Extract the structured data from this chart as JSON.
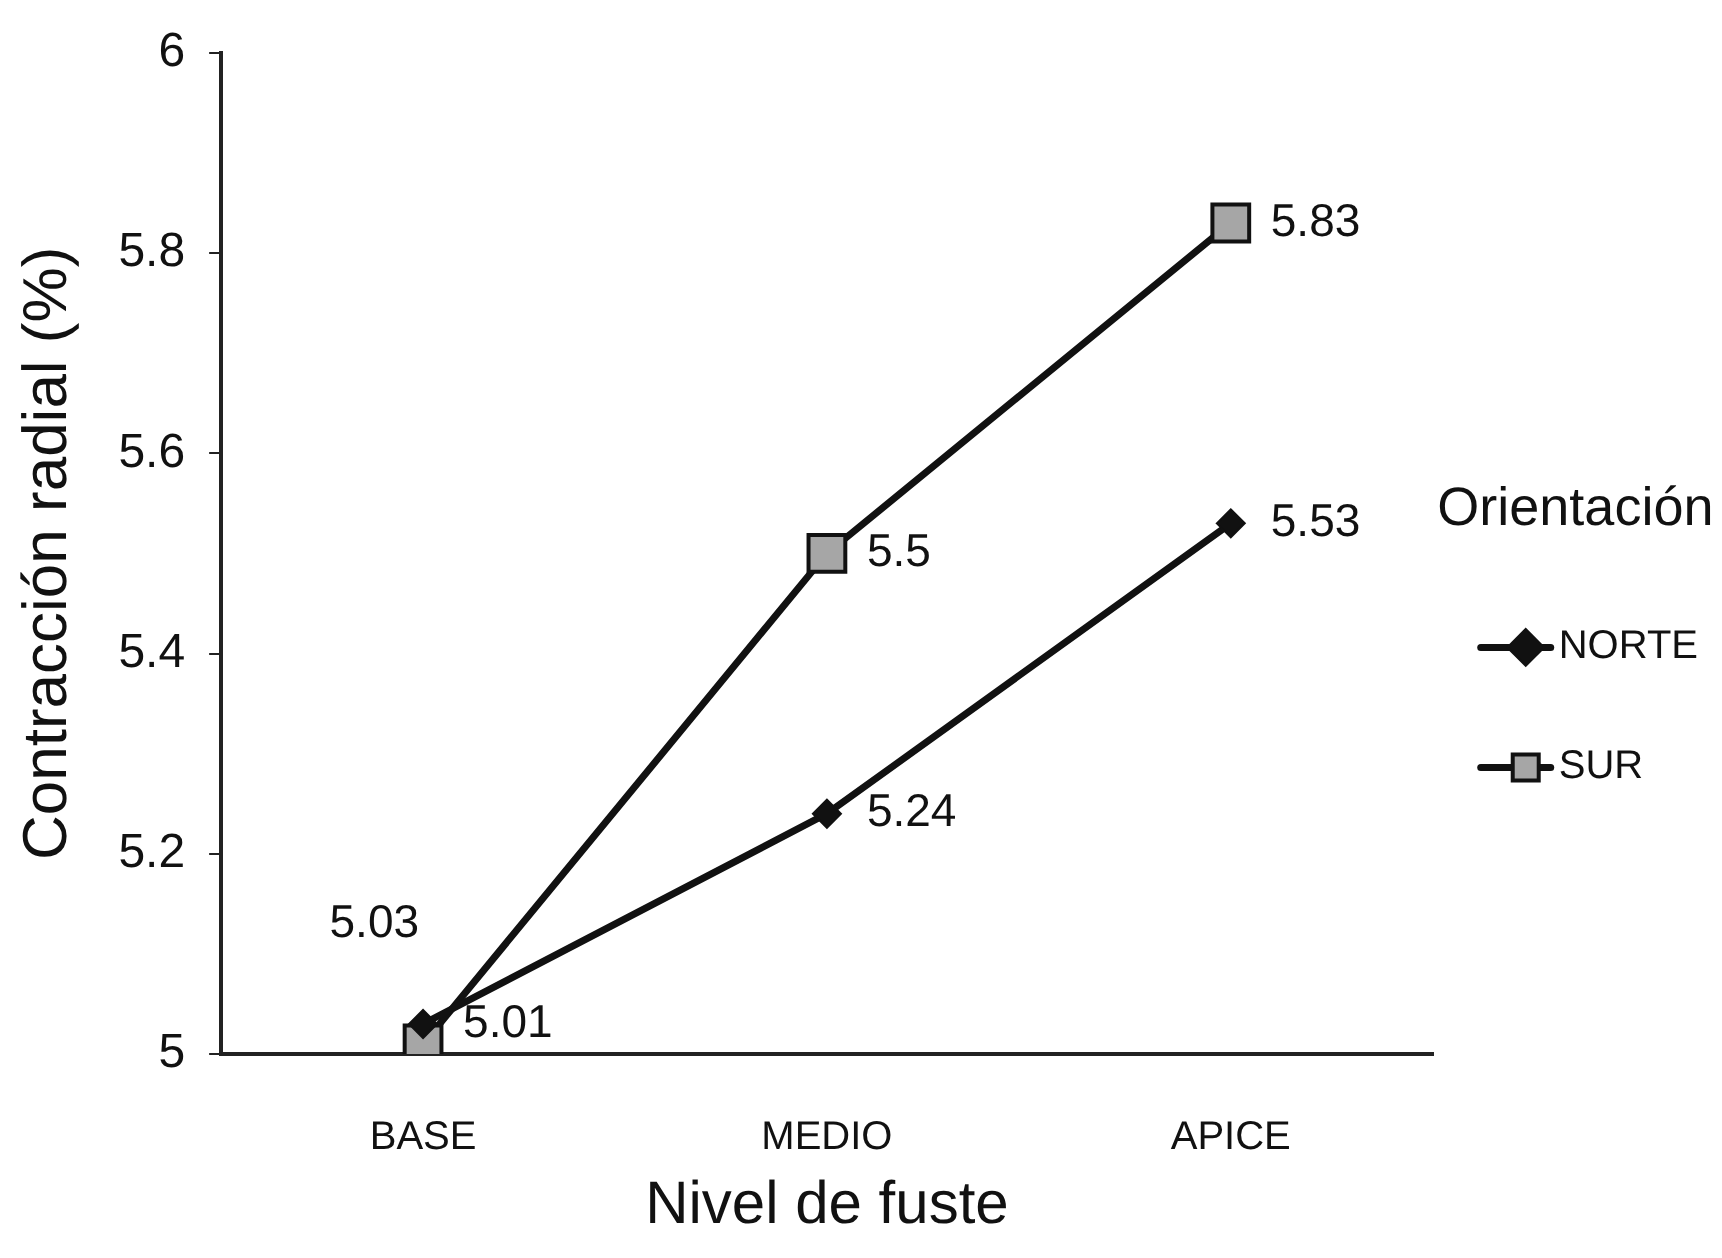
{
  "chart_data": {
    "type": "line",
    "xlabel": "Nivel de fuste",
    "ylabel": "Contracción radial (%)",
    "legend_title": "Orientación",
    "categories": [
      "BASE",
      "MEDIO",
      "APICE"
    ],
    "series": [
      {
        "name": "NORTE",
        "color": "#111111",
        "marker": "diamond",
        "values": [
          5.03,
          5.24,
          5.53
        ]
      },
      {
        "name": "SUR",
        "color": "#111111",
        "marker": "square",
        "values": [
          5.01,
          5.5,
          5.83
        ]
      }
    ],
    "ylim": [
      5,
      6
    ],
    "yticks": [
      5,
      5.2,
      5.4,
      5.6,
      5.8,
      6
    ],
    "grid": false,
    "legend": "right",
    "data_labels": true,
    "line_style": "solid"
  }
}
